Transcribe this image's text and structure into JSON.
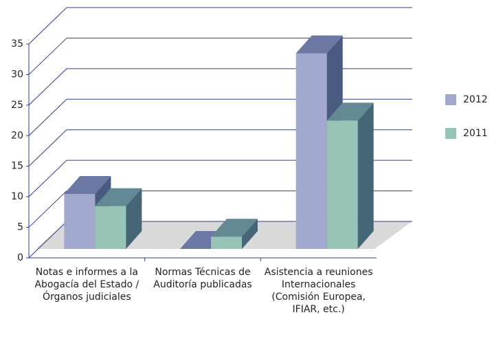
{
  "chart_data": {
    "type": "bar3d",
    "categories": [
      "Notas e informes a la Abogacía del Estado / Órganos judiciales",
      "Normas Técnicas de Auditoría publicadas",
      "Asistencia a reuniones Internacionales (Comisión Europea, IFIAR, etc.)"
    ],
    "series": [
      {
        "name": "2012",
        "color": "#a3a8cf",
        "values": [
          9,
          0,
          32
        ]
      },
      {
        "name": "2011",
        "color": "#98c4b8",
        "values": [
          7,
          2,
          21
        ]
      }
    ],
    "ylim": [
      0,
      35
    ],
    "yticks": [
      0,
      5,
      10,
      15,
      20,
      25,
      30,
      35
    ],
    "grid": true,
    "legend": "right"
  }
}
